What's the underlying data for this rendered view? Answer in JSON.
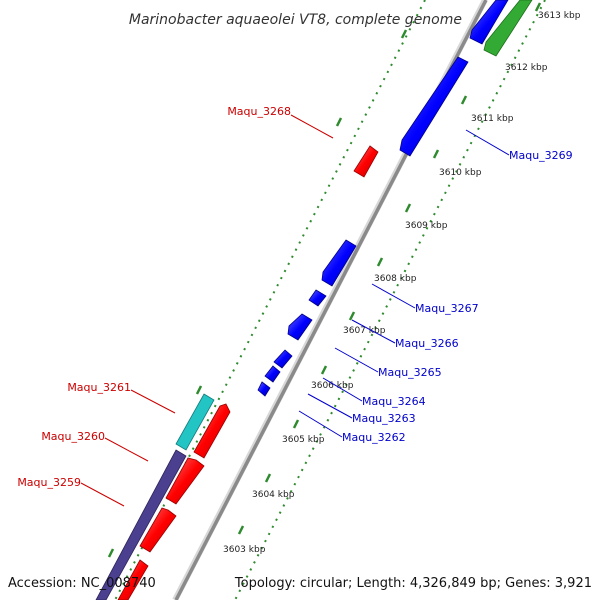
{
  "title": "Marinobacter aquaeolei VT8, complete genome",
  "footer": {
    "accession": "Accession: NC_008740",
    "summary": "Topology: circular; Length: 4,326,849 bp; Genes: 3,921"
  },
  "colors": {
    "backbone": "#8a8a8a",
    "tick": "#2e8b2e",
    "plus_gene": "#ff0000",
    "minus_gene": "#0000ff",
    "plus_label": "#cc0000",
    "minus_label": "#0000cc",
    "cyan_feature": "#22c4c4",
    "purple_feature": "#4b3f8f",
    "green_feature": "#33aa33"
  },
  "ticks": [
    {
      "label": "3603 kbp"
    },
    {
      "label": "3604 kbp"
    },
    {
      "label": "3605 kbp"
    },
    {
      "label": "3606 kbp"
    },
    {
      "label": "3607 kbp"
    },
    {
      "label": "3608 kbp"
    },
    {
      "label": "3609 kbp"
    },
    {
      "label": "3610 kbp"
    },
    {
      "label": "3611 kbp"
    },
    {
      "label": "3612 kbp"
    },
    {
      "label": "3613 kbp"
    }
  ],
  "labels_left": [
    {
      "text": "Maqu_3268"
    },
    {
      "text": "Maqu_3261"
    },
    {
      "text": "Maqu_3260"
    },
    {
      "text": "Maqu_3259"
    }
  ],
  "labels_right": [
    {
      "text": "Maqu_3269"
    },
    {
      "text": "Maqu_3267"
    },
    {
      "text": "Maqu_3266"
    },
    {
      "text": "Maqu_3265"
    },
    {
      "text": "Maqu_3264"
    },
    {
      "text": "Maqu_3263"
    },
    {
      "text": "Maqu_3262"
    }
  ]
}
